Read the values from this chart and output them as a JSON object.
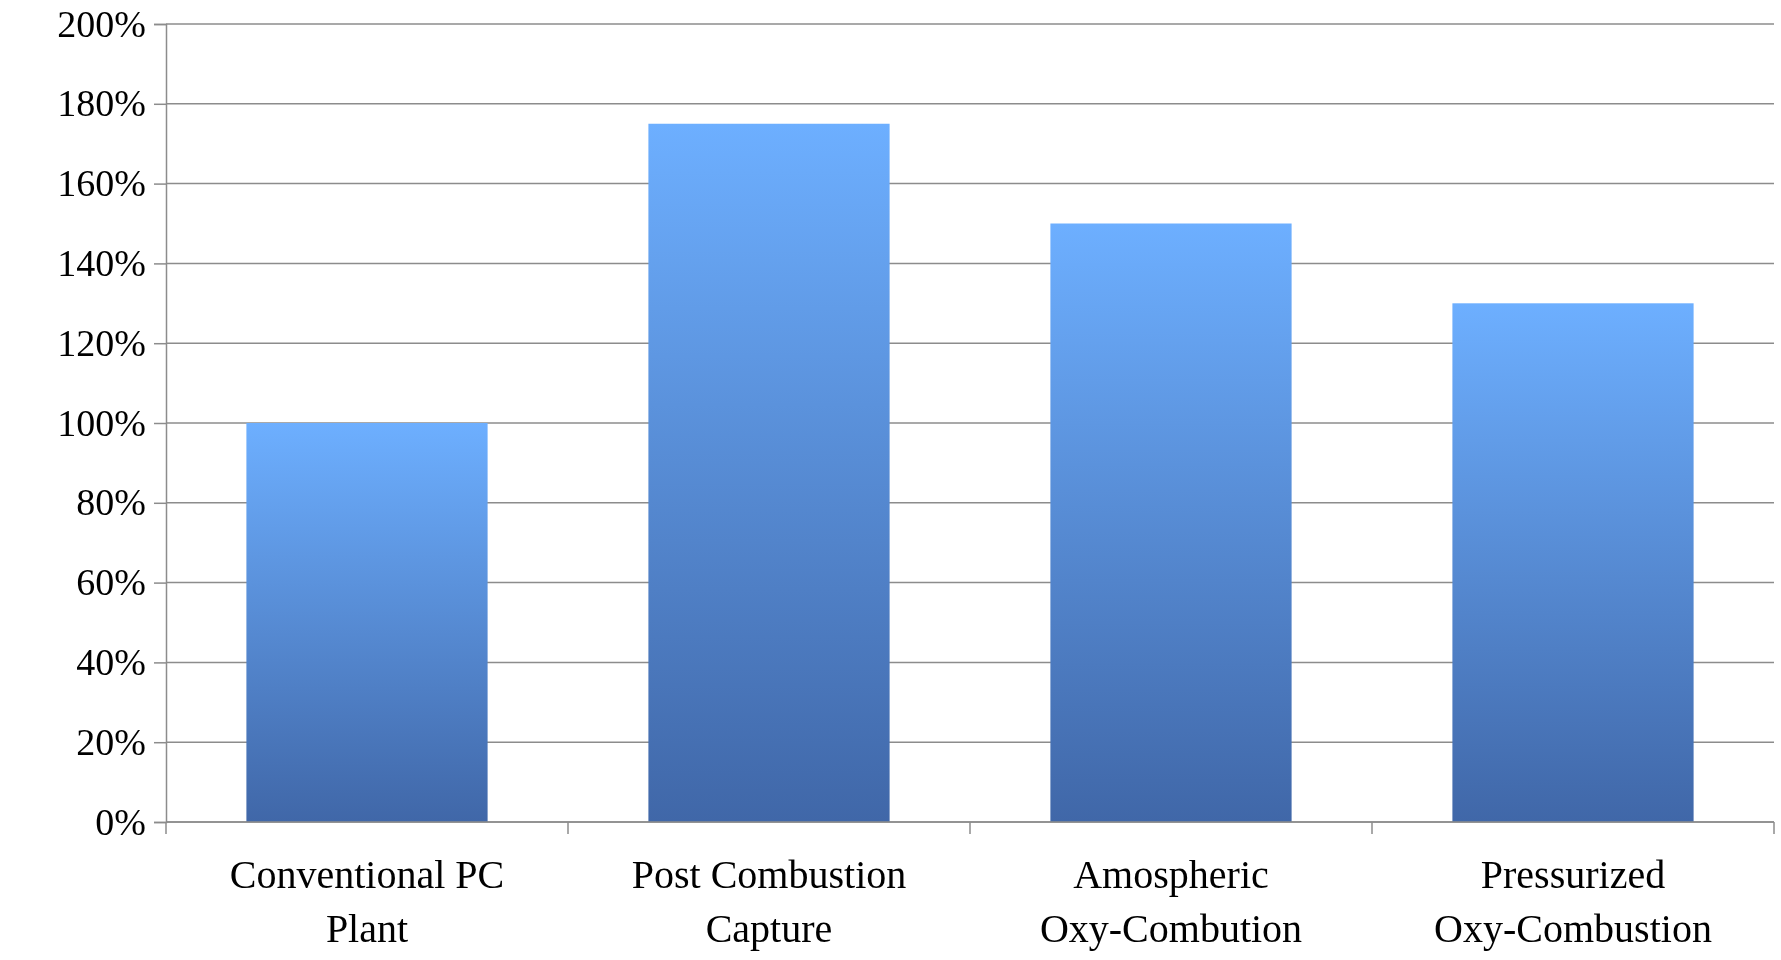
{
  "chart_data": {
    "type": "bar",
    "categories": [
      "Conventional PC Plant",
      "Post Combustion Capture",
      "Amospheric Oxy-Combution",
      "Pressurized Oxy-Combustion"
    ],
    "values": [
      100,
      175,
      150,
      130
    ],
    "color": "#4f7fd0",
    "ylim": [
      0,
      200
    ],
    "yticks": [
      {
        "value": 0,
        "label": "0%"
      },
      {
        "value": 20,
        "label": "20%"
      },
      {
        "value": 40,
        "label": "40%"
      },
      {
        "value": 60,
        "label": "60%"
      },
      {
        "value": 80,
        "label": "80%"
      },
      {
        "value": 100,
        "label": "100%"
      },
      {
        "value": 120,
        "label": "120%"
      },
      {
        "value": 140,
        "label": "140%"
      },
      {
        "value": 160,
        "label": "160%"
      },
      {
        "value": 180,
        "label": "180%"
      },
      {
        "value": 200,
        "label": "200%"
      }
    ],
    "grid": "y"
  }
}
